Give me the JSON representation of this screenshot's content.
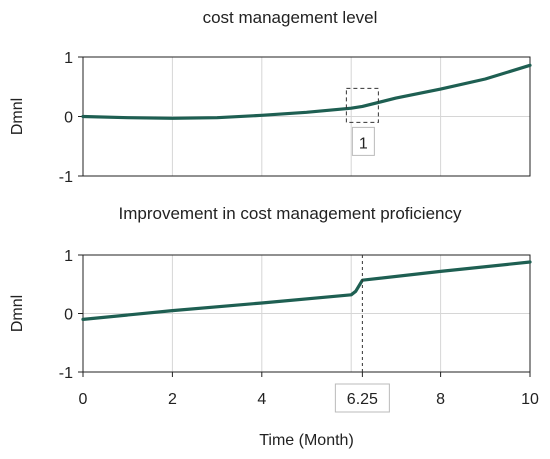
{
  "chart_data": [
    {
      "type": "line",
      "title": "cost management level",
      "ylabel": "Dmnl",
      "xlim": [
        0,
        10
      ],
      "ylim": [
        -1,
        1
      ],
      "y_ticks": [
        "1",
        "0",
        "-1"
      ],
      "x_ticks": [
        "0",
        "2",
        "4",
        "6.25",
        "8",
        "10"
      ],
      "grid": true,
      "color": "#1e5f52",
      "annotation": "1",
      "series": [
        {
          "x": [
            0,
            1,
            2,
            3,
            4,
            5,
            6,
            6.25,
            7,
            8,
            9,
            10
          ],
          "y": [
            0.0,
            -0.02,
            -0.03,
            -0.02,
            0.02,
            0.07,
            0.14,
            0.17,
            0.31,
            0.46,
            0.63,
            0.86
          ]
        }
      ]
    },
    {
      "type": "line",
      "title": "Improvement in cost management proficiency",
      "ylabel": "Dmnl",
      "xlabel": "Time (Month)",
      "xlim": [
        0,
        10
      ],
      "ylim": [
        -1,
        1
      ],
      "y_ticks": [
        "1",
        "0",
        "-1"
      ],
      "x_ticks": [
        "0",
        "2",
        "4",
        "6.25",
        "8",
        "10"
      ],
      "highlight_x": 6.25,
      "highlight_label": "6.25",
      "grid": true,
      "color": "#1e5f52",
      "series": [
        {
          "x": [
            0,
            2,
            4,
            6,
            6.1,
            6.25,
            8,
            10
          ],
          "y": [
            -0.1,
            0.05,
            0.18,
            0.32,
            0.38,
            0.57,
            0.72,
            0.88
          ]
        }
      ]
    }
  ]
}
